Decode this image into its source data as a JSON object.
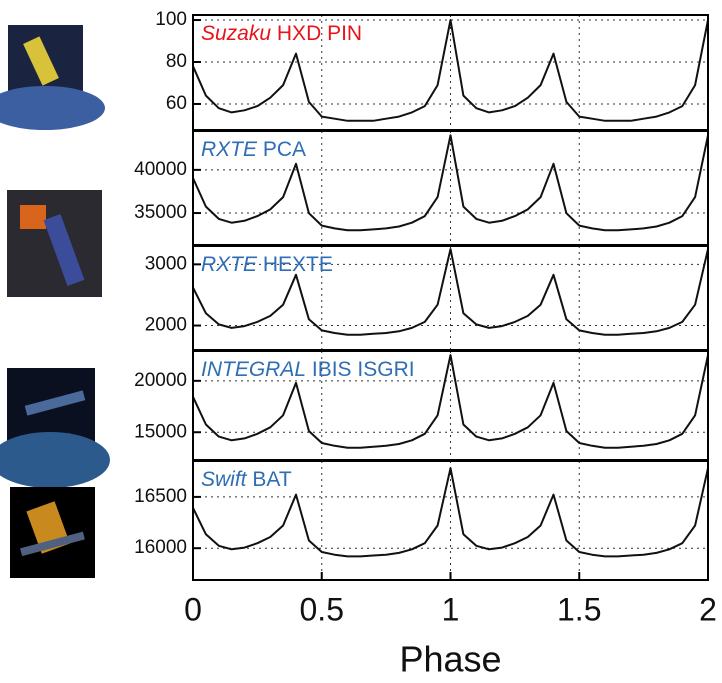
{
  "chart_data": [
    {
      "type": "line",
      "mission": "Suzaku",
      "instrument": "HXD PIN",
      "title_color": "#e8141c",
      "color": "#111111",
      "x": [
        0,
        0.05,
        0.1,
        0.15,
        0.2,
        0.25,
        0.3,
        0.35,
        0.4,
        0.45,
        0.5,
        0.55,
        0.6,
        0.65,
        0.7,
        0.75,
        0.8,
        0.85,
        0.9,
        0.95,
        1,
        1.05,
        1.1,
        1.15,
        1.2,
        1.25,
        1.3,
        1.35,
        1.4,
        1.45,
        1.5,
        1.55,
        1.6,
        1.65,
        1.7,
        1.75,
        1.8,
        1.85,
        1.9,
        1.95,
        2
      ],
      "values": [
        78,
        64,
        58,
        56,
        57,
        59,
        63,
        69,
        84,
        61,
        54,
        53,
        52,
        52,
        52,
        53,
        54,
        56,
        59,
        69,
        100,
        64,
        58,
        56,
        57,
        59,
        63,
        69,
        84,
        61,
        54,
        53,
        52,
        52,
        52,
        53,
        54,
        56,
        59,
        69,
        100
      ],
      "xlim": [
        0,
        2
      ],
      "ylim": [
        47.6,
        102.4
      ],
      "yticks": [
        60,
        80,
        100
      ],
      "grid": true
    },
    {
      "type": "line",
      "mission": "RXTE",
      "instrument": "PCA",
      "title_color": "#2f6db5",
      "color": "#111111",
      "x": [
        0,
        0.05,
        0.1,
        0.15,
        0.2,
        0.25,
        0.3,
        0.35,
        0.4,
        0.45,
        0.5,
        0.55,
        0.6,
        0.65,
        0.7,
        0.75,
        0.8,
        0.85,
        0.9,
        0.95,
        1,
        1.05,
        1.1,
        1.15,
        1.2,
        1.25,
        1.3,
        1.35,
        1.4,
        1.45,
        1.5,
        1.55,
        1.6,
        1.65,
        1.7,
        1.75,
        1.8,
        1.85,
        1.9,
        1.95,
        2
      ],
      "values": [
        39050,
        35750,
        34320,
        33880,
        34100,
        34650,
        35420,
        36850,
        40700,
        34980,
        33550,
        33220,
        33000,
        33000,
        33110,
        33220,
        33440,
        33880,
        34650,
        36850,
        44000,
        35750,
        34320,
        33880,
        34100,
        34650,
        35420,
        36850,
        40700,
        34980,
        33550,
        33220,
        33000,
        33000,
        33110,
        33220,
        33440,
        33880,
        34650,
        36850,
        44000
      ],
      "xlim": [
        0,
        2
      ],
      "ylim": [
        31300,
        44500
      ],
      "yticks": [
        35000,
        40000
      ],
      "grid": true
    },
    {
      "type": "line",
      "mission": "RXTE",
      "instrument": "HEXTE",
      "title_color": "#2f6db5",
      "color": "#111111",
      "x": [
        0,
        0.05,
        0.1,
        0.15,
        0.2,
        0.25,
        0.3,
        0.35,
        0.4,
        0.45,
        0.5,
        0.55,
        0.6,
        0.65,
        0.7,
        0.75,
        0.8,
        0.85,
        0.9,
        0.95,
        1,
        1.05,
        1.1,
        1.15,
        1.2,
        1.25,
        1.3,
        1.35,
        1.4,
        1.45,
        1.5,
        1.55,
        1.6,
        1.65,
        1.7,
        1.75,
        1.8,
        1.85,
        1.9,
        1.95,
        2
      ],
      "values": [
        2620,
        2200,
        2018,
        1962,
        1990,
        2060,
        2158,
        2340,
        2830,
        2102,
        1920,
        1878,
        1850,
        1850,
        1864,
        1878,
        1906,
        1962,
        2060,
        2340,
        3250,
        2200,
        2018,
        1962,
        1990,
        2060,
        2158,
        2340,
        2830,
        2102,
        1920,
        1878,
        1850,
        1850,
        1864,
        1878,
        1906,
        1962,
        2060,
        2340,
        3250
      ],
      "xlim": [
        0,
        2
      ],
      "ylim": [
        1600,
        3300
      ],
      "yticks": [
        2000,
        3000
      ],
      "grid": true
    },
    {
      "type": "line",
      "mission": "INTEGRAL",
      "instrument": "IBIS ISGRI",
      "title_color": "#2f6db5",
      "color": "#111111",
      "x": [
        0,
        0.05,
        0.1,
        0.15,
        0.2,
        0.25,
        0.3,
        0.35,
        0.4,
        0.45,
        0.5,
        0.55,
        0.6,
        0.65,
        0.7,
        0.75,
        0.8,
        0.85,
        0.9,
        0.95,
        1,
        1.05,
        1.1,
        1.15,
        1.2,
        1.25,
        1.3,
        1.35,
        1.4,
        1.45,
        1.5,
        1.55,
        1.6,
        1.65,
        1.7,
        1.75,
        1.8,
        1.85,
        1.9,
        1.95,
        2
      ],
      "values": [
        18450,
        15750,
        14580,
        14220,
        14400,
        14850,
        15480,
        16650,
        19800,
        15120,
        13950,
        13680,
        13500,
        13500,
        13590,
        13680,
        13860,
        14220,
        14850,
        16650,
        22500,
        15750,
        14580,
        14220,
        14400,
        14850,
        15480,
        16650,
        19800,
        15120,
        13950,
        13680,
        13500,
        13500,
        13590,
        13680,
        13860,
        14220,
        14850,
        16650,
        22500
      ],
      "xlim": [
        0,
        2
      ],
      "ylim": [
        12300,
        22900
      ],
      "yticks": [
        15000,
        20000
      ],
      "grid": true
    },
    {
      "type": "line",
      "mission": "Swift",
      "instrument": "BAT",
      "title_color": "#2f6db5",
      "color": "#111111",
      "x": [
        0,
        0.05,
        0.1,
        0.15,
        0.2,
        0.25,
        0.3,
        0.35,
        0.4,
        0.45,
        0.5,
        0.55,
        0.6,
        0.65,
        0.7,
        0.75,
        0.8,
        0.85,
        0.9,
        0.95,
        1,
        1.05,
        1.1,
        1.15,
        1.2,
        1.25,
        1.3,
        1.35,
        1.4,
        1.45,
        1.5,
        1.55,
        1.6,
        1.65,
        1.7,
        1.75,
        1.8,
        1.85,
        1.9,
        1.95,
        2
      ],
      "values": [
        16393,
        16135,
        16023,
        15989,
        16006,
        16049,
        16109,
        16221,
        16522,
        16075,
        15963,
        15937,
        15920,
        15920,
        15929,
        15937,
        15954,
        15989,
        16049,
        16221,
        16780,
        16135,
        16023,
        15989,
        16006,
        16049,
        16109,
        16221,
        16522,
        16075,
        15963,
        15937,
        15920,
        15920,
        15929,
        15937,
        15954,
        15989,
        16049,
        16221,
        16780
      ],
      "xlim": [
        0,
        2
      ],
      "ylim": [
        15690,
        16850
      ],
      "yticks": [
        16000,
        16500
      ],
      "grid": true,
      "xticks": [
        0,
        0.5,
        1,
        1.5,
        2
      ],
      "xlabel": "Phase"
    }
  ]
}
